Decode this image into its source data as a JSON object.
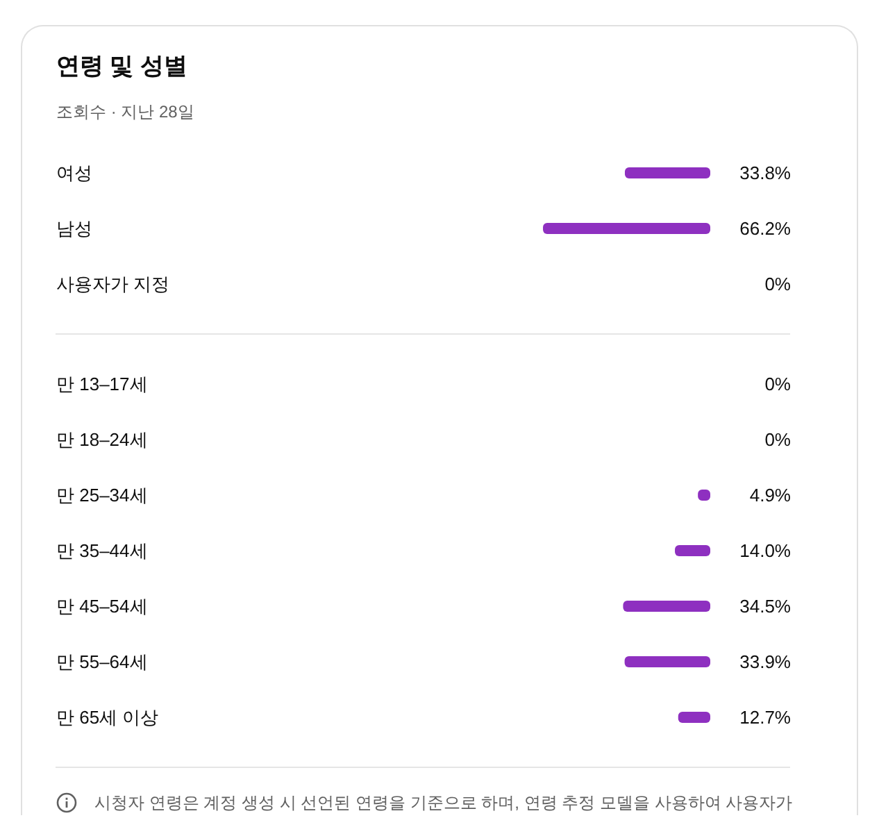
{
  "chart_data": [
    {
      "type": "bar",
      "orientation": "horizontal",
      "title": "연령 및 성별",
      "subtitle": "조회수 · 지난 28일",
      "categories": [
        "여성",
        "남성",
        "사용자가 지정"
      ],
      "values": [
        33.8,
        66.2,
        0
      ],
      "value_labels": [
        "33.8%",
        "66.2%",
        "0%"
      ],
      "color": "#8e30c0",
      "tick_labels": "y"
    },
    {
      "type": "bar",
      "orientation": "horizontal",
      "categories": [
        "만 13–17세",
        "만 18–24세",
        "만 25–34세",
        "만 35–44세",
        "만 45–54세",
        "만 55–64세",
        "만 65세 이상"
      ],
      "values": [
        0,
        0,
        4.9,
        14.0,
        34.5,
        33.9,
        12.7
      ],
      "value_labels": [
        "0%",
        "0%",
        "4.9%",
        "14.0%",
        "34.5%",
        "33.9%",
        "12.7%"
      ],
      "color": "#8e30c0",
      "tick_labels": "y",
      "annotations": [
        "시청자 연령은 계정 생성 시 선언된 연령을 기준으로 하며, 연령 추정 모델을 사용하여 사용자가"
      ]
    }
  ]
}
